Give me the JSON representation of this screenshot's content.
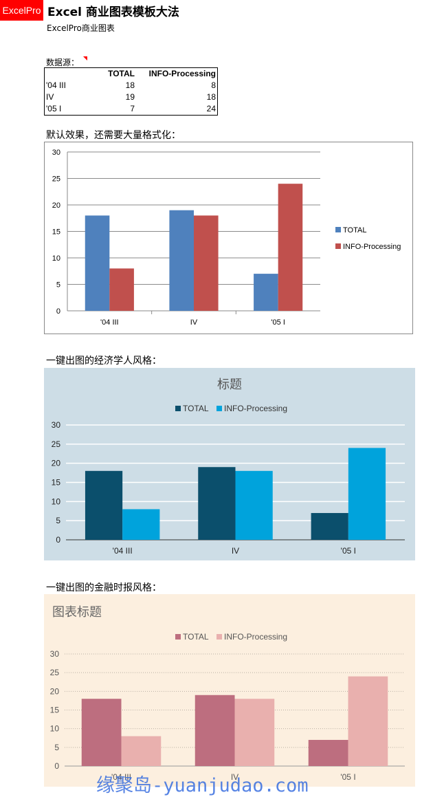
{
  "header": {
    "logo": "ExcelPro",
    "title": "Excel 商业图表模板大法",
    "subtitle": "ExcelPro商业图表"
  },
  "source": {
    "label": "数据源：",
    "columns": [
      "",
      "TOTAL",
      "INFO-Processing"
    ],
    "rows": [
      [
        "'04 III",
        "18",
        "8"
      ],
      [
        "IV",
        "19",
        "18"
      ],
      [
        "'05 I",
        "7",
        "24"
      ]
    ]
  },
  "sections": {
    "default": "默认效果，还需要大量格式化：",
    "economist": "一键出图的经济学人风格：",
    "ft": "一键出图的金融时报风格："
  },
  "watermark": "缘聚岛-yuanjudao.com",
  "chart_data": [
    {
      "type": "bar",
      "categories": [
        "'04 III",
        "IV",
        "'05 I"
      ],
      "series": [
        {
          "name": "TOTAL",
          "values": [
            18,
            19,
            7
          ],
          "color": "#4f81bd"
        },
        {
          "name": "INFO-Processing",
          "values": [
            8,
            18,
            24
          ],
          "color": "#c0504d"
        }
      ],
      "title": "",
      "ylim": [
        0,
        30
      ],
      "yticks": [
        0,
        5,
        10,
        15,
        20,
        25,
        30
      ],
      "grid": true,
      "legend": "right"
    },
    {
      "type": "bar",
      "categories": [
        "'04 III",
        "IV",
        "'05 I"
      ],
      "series": [
        {
          "name": "TOTAL",
          "values": [
            18,
            19,
            7
          ],
          "color": "#0b4f6c"
        },
        {
          "name": "INFO-Processing",
          "values": [
            8,
            18,
            24
          ],
          "color": "#00a3dc"
        }
      ],
      "title": "标题",
      "ylim": [
        0,
        30
      ],
      "yticks": [
        0,
        5,
        10,
        15,
        20,
        25,
        30
      ],
      "grid": true,
      "legend": "top",
      "background": "#cddde6"
    },
    {
      "type": "bar",
      "categories": [
        "'04 III",
        "IV",
        "'05 I"
      ],
      "series": [
        {
          "name": "TOTAL",
          "values": [
            18,
            19,
            7
          ],
          "color": "#bd6e7f"
        },
        {
          "name": "INFO-Processing",
          "values": [
            8,
            18,
            24
          ],
          "color": "#e9b0ae"
        }
      ],
      "title": "图表标题",
      "ylim": [
        0,
        30
      ],
      "yticks": [
        0,
        5,
        10,
        15,
        20,
        25,
        30
      ],
      "grid": true,
      "legend": "top",
      "background": "#fcefdf"
    }
  ]
}
